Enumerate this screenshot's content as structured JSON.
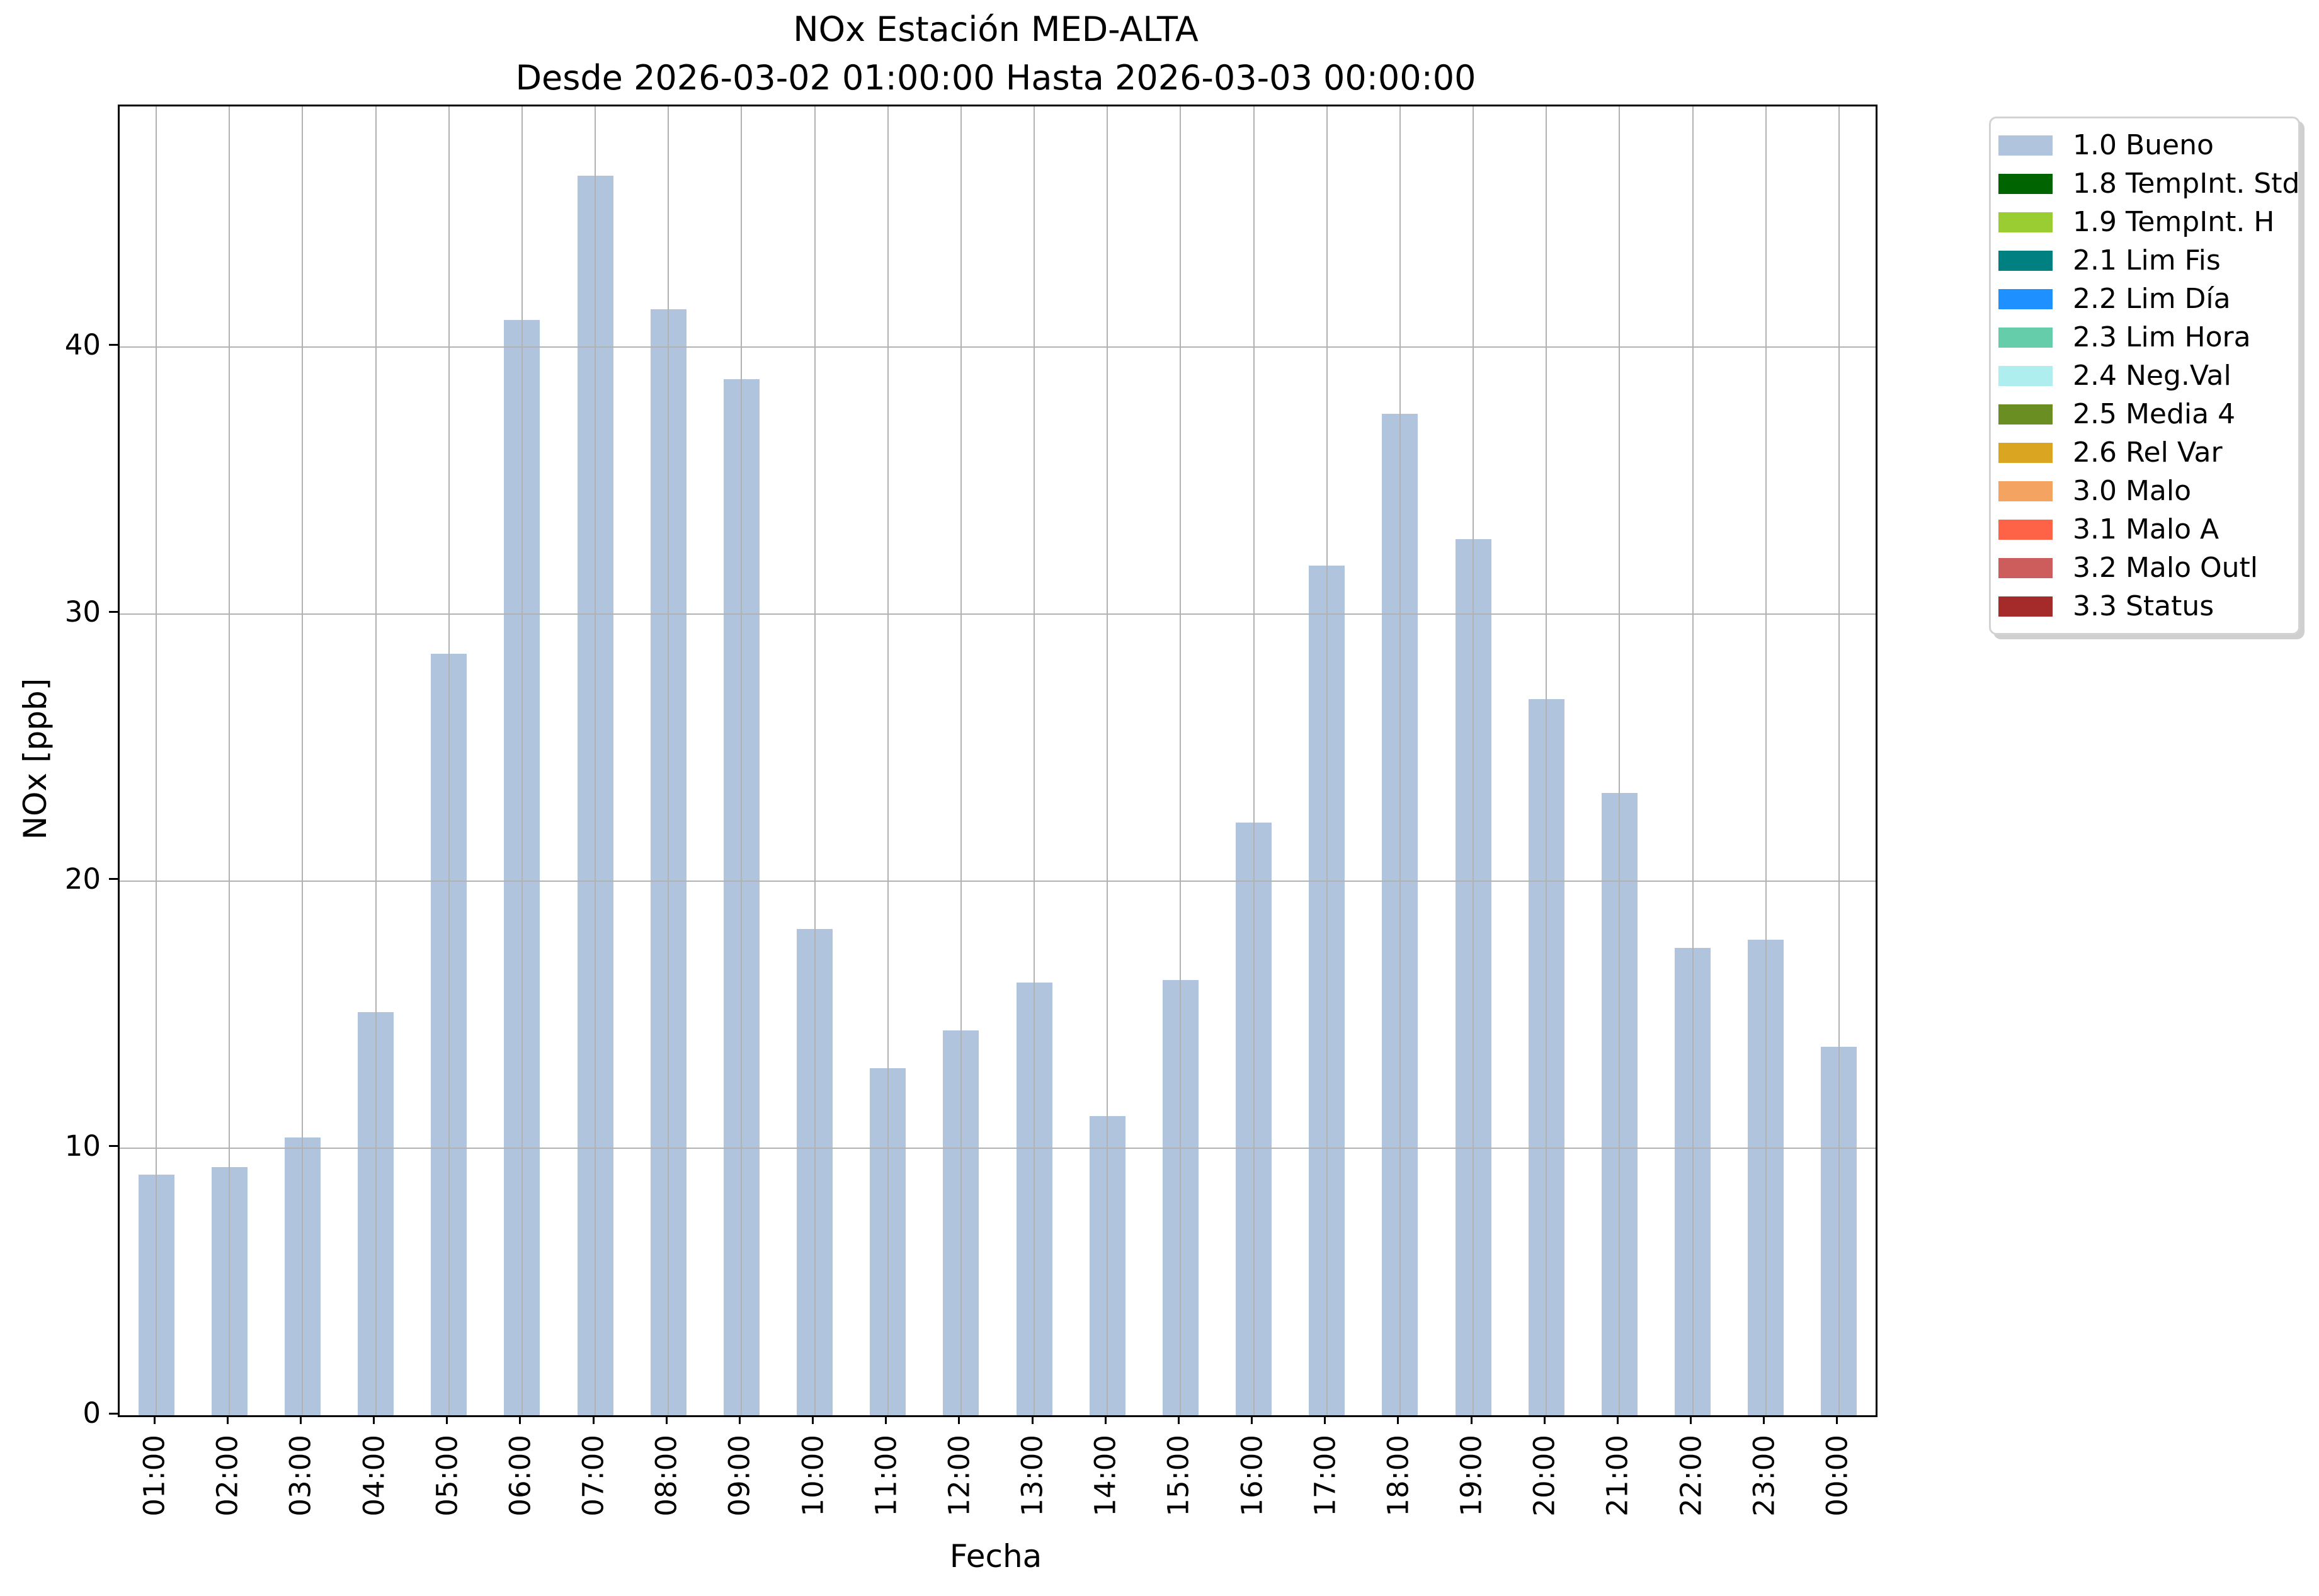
{
  "header": {
    "title": "NOx Estación MED-ALTA",
    "subtitle": "Desde 2026-03-02 01:00:00 Hasta 2026-03-03 00:00:00"
  },
  "chart_data": {
    "type": "bar",
    "title": "NOx Estación MED-ALTA",
    "subtitle": "Desde 2026-03-02 01:00:00 Hasta 2026-03-03 00:00:00",
    "xlabel": "Fecha",
    "ylabel": "NOx [ppb]",
    "categories": [
      "01:00",
      "02:00",
      "03:00",
      "04:00",
      "05:00",
      "06:00",
      "07:00",
      "08:00",
      "09:00",
      "10:00",
      "11:00",
      "12:00",
      "13:00",
      "14:00",
      "15:00",
      "16:00",
      "17:00",
      "18:00",
      "19:00",
      "20:00",
      "21:00",
      "22:00",
      "23:00",
      "00:00"
    ],
    "values": [
      9.0,
      9.3,
      10.4,
      15.1,
      28.5,
      41.0,
      46.4,
      41.4,
      38.8,
      18.2,
      13.0,
      14.4,
      16.2,
      11.2,
      16.3,
      22.2,
      31.8,
      37.5,
      32.8,
      26.8,
      23.3,
      17.5,
      17.8,
      13.8
    ],
    "series_name": "1.0 Bueno",
    "bar_color": "#b0c4de",
    "ylim": [
      0,
      49
    ],
    "yticks": [
      0,
      10,
      20,
      30,
      40
    ],
    "grid": true,
    "gridline_color": "#b2b2b2",
    "legend_position": "outside-right",
    "legend": [
      {
        "label": "1.0 Bueno",
        "color": "#b0c4de"
      },
      {
        "label": "1.8 TempInt. Std",
        "color": "#006400"
      },
      {
        "label": "1.9 TempInt. H",
        "color": "#9acd32"
      },
      {
        "label": "2.1 Lim Fis",
        "color": "#008080"
      },
      {
        "label": "2.2 Lim Día",
        "color": "#1e90ff"
      },
      {
        "label": "2.3 Lim Hora",
        "color": "#66cdaa"
      },
      {
        "label": "2.4 Neg.Val",
        "color": "#afeeee"
      },
      {
        "label": "2.5 Media 4",
        "color": "#6b8e23"
      },
      {
        "label": "2.6 Rel Var",
        "color": "#daa520"
      },
      {
        "label": "3.0 Malo",
        "color": "#f4a460"
      },
      {
        "label": "3.1 Malo A",
        "color": "#ff6347"
      },
      {
        "label": "3.2 Malo Outl",
        "color": "#cd5c5c"
      },
      {
        "label": "3.3 Status",
        "color": "#a52a2a"
      }
    ]
  }
}
